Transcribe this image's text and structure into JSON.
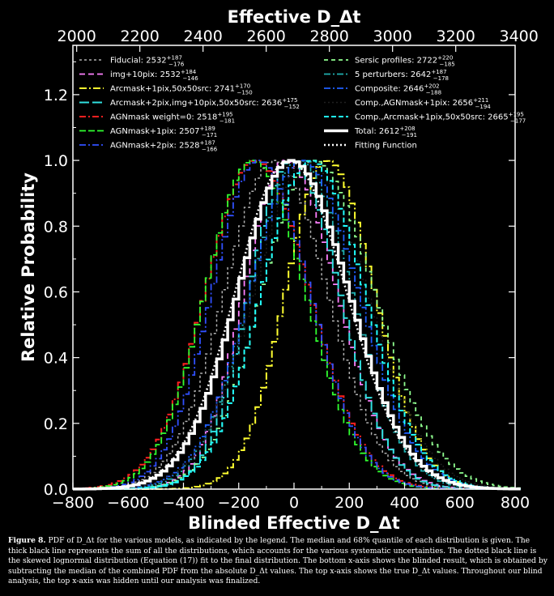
{
  "chart_data": {
    "type": "line",
    "xlabel": "Blinded Effective D_Δt",
    "ylabel": "Relative Probability",
    "top_xlabel": "Effective D_Δt",
    "xlim": [
      -800,
      800
    ],
    "ylim": [
      0,
      1.35
    ],
    "top_xlim": [
      1988,
      3388
    ],
    "xticks": [
      "−800",
      "−600",
      "−400",
      "−200",
      "0",
      "200",
      "400",
      "600",
      "800"
    ],
    "yticks": [
      "0.0",
      "0.2",
      "0.4",
      "0.6",
      "0.8",
      "1.0",
      "1.2"
    ],
    "top_xticks": [
      "2000",
      "2200",
      "2400",
      "2600",
      "2800",
      "3000",
      "3200",
      "3400"
    ],
    "legend_position": "top",
    "series": [
      {
        "name": "Fiducial: 2532",
        "sup": "+187",
        "sub": "−176",
        "color": "#b0b0b0",
        "dash": "3,3",
        "width": 1.5,
        "peak": -80,
        "sl": 180,
        "sr": 190
      },
      {
        "name": "img+10pix: 2532",
        "sup": "+184",
        "sub": "−146",
        "color": "#ff80ff",
        "dash": "7,4",
        "width": 1.8,
        "peak": -40,
        "sl": 150,
        "sr": 185
      },
      {
        "name": "Arcmask+1pix,50x50src: 2741",
        "sup": "+170",
        "sub": "−150",
        "color": "#ffff30",
        "dash": "9,3,2,3",
        "width": 2.0,
        "peak": 110,
        "sl": 150,
        "sr": 170
      },
      {
        "name": "Arcmask+2pix,img+10pix,50x50src: 2636",
        "sup": "+175",
        "sub": "−152",
        "color": "#30e0e0",
        "dash": "12,4",
        "width": 2.0,
        "peak": -20,
        "sl": 150,
        "sr": 175
      },
      {
        "name": "AGNmask weight=0: 2518",
        "sup": "+195",
        "sub": "−181",
        "color": "#ff2020",
        "dash": "8,3,2,3",
        "width": 2.0,
        "peak": -150,
        "sl": 180,
        "sr": 195
      },
      {
        "name": "AGNmask+1pix: 2507",
        "sup": "+189",
        "sub": "−171",
        "color": "#30ff30",
        "dash": "8,3",
        "width": 1.8,
        "peak": -160,
        "sl": 170,
        "sr": 190
      },
      {
        "name": "AGNmask+2pix: 2528",
        "sup": "+187",
        "sub": "−166",
        "color": "#3050ff",
        "dash": "8,3,2,3",
        "width": 1.8,
        "peak": -140,
        "sl": 165,
        "sr": 187
      },
      {
        "name": "Sersic profiles: 2722",
        "sup": "+220",
        "sub": "−185",
        "color": "#90ff90",
        "dash": "5,4",
        "width": 1.8,
        "peak": 60,
        "sl": 185,
        "sr": 220
      },
      {
        "name": "5 perturbers: 2642",
        "sup": "+187",
        "sub": "−178",
        "color": "#20b0b0",
        "dash": "8,3,2,3",
        "width": 1.8,
        "peak": 10,
        "sl": 178,
        "sr": 187
      },
      {
        "name": "Composite: 2646",
        "sup": "+202",
        "sub": "−188",
        "color": "#2060ff",
        "dash": "8,3,2,3",
        "width": 1.8,
        "peak": 20,
        "sl": 188,
        "sr": 202
      },
      {
        "name": "Comp.,AGNmask+1pix: 2656",
        "sup": "+211",
        "sub": "−194",
        "color": "#202020",
        "dash": "2,3",
        "width": 1.5,
        "peak": 40,
        "sl": 194,
        "sr": 211
      },
      {
        "name": "Comp.,Arcmask+1pix,50x50src: 2665",
        "sup": "+195",
        "sub": "−177",
        "color": "#20ffff",
        "dash": "6,3",
        "width": 2.0,
        "peak": 50,
        "sl": 177,
        "sr": 195
      },
      {
        "name": "Total: 2612",
        "sup": "+208",
        "sub": "−191",
        "color": "#ffffff",
        "dash": "",
        "width": 3.5,
        "peak": -20,
        "sl": 191,
        "sr": 208
      },
      {
        "name": "Fitting Function",
        "sup": "",
        "sub": "",
        "color": "#ffffff",
        "dash": "2,3",
        "width": 2.5,
        "peak": -20,
        "sl": 191,
        "sr": 208
      }
    ]
  },
  "caption": {
    "label": "Figure 8.",
    "text": "PDF of D_Δt for the various models, as indicated by the legend. The median and 68% quantile of each distribution is given. The thick black line represents the sum of all the distributions, which accounts for the various systematic uncertainties. The dotted black line is the skewed lognormal distribution (Equation (17)) fit to the final distribution. The bottom x-axis shows the blinded result, which is obtained by subtracting the median of the combined PDF from the absolute D_Δt values. The top x-axis shows the true D_Δt values. Throughout our blind analysis, the top x-axis was hidden until our analysis was finalized."
  }
}
